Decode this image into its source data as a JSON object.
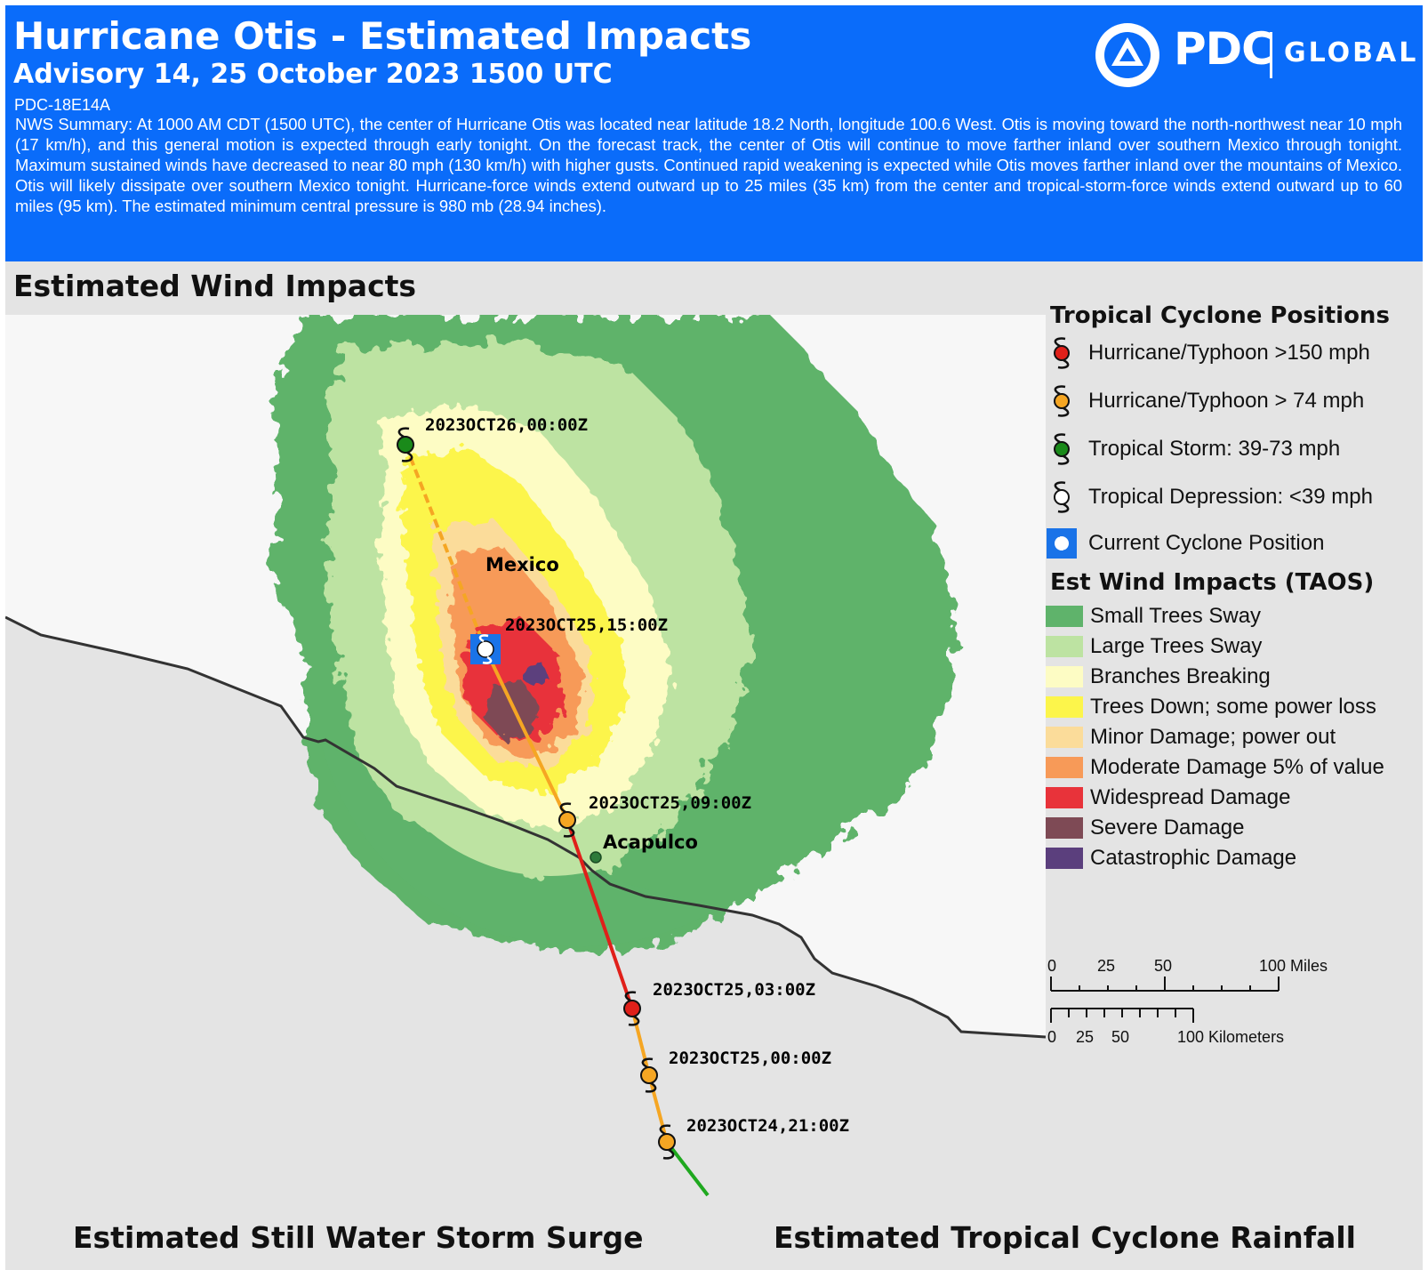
{
  "header": {
    "title": "Hurricane Otis - Estimated Impacts",
    "advisory": "Advisory  14, 25 October 2023 1500 UTC",
    "advisory_id": "PDC-18E14A",
    "summary": "NWS Summary: At 1000 AM CDT (1500 UTC), the center of Hurricane Otis was located near latitude 18.2 North, longitude 100.6 West.  Otis is moving toward the north-northwest near 10 mph (17 km/h), and this general  motion is expected through early tonight.  On the forecast track,   the center of Otis will continue to move farther inland over southern Mexico through tonight.   Maximum sustained winds have decreased to near 80 mph (130 km/h)  with higher gusts.  Continued rapid weakening is expected while Otis moves farther inland over the mountains of Mexico.  Otis will likely dissipate over southern Mexico tonight.   Hurricane-force winds extend outward up to 25 miles (35 km) from the center and tropical-storm-force winds extend outward up to 60 miles (95 km).   The estimated minimum central pressure is 980 mb (28.94 inches).",
    "logo": {
      "brand": "PDC",
      "suffix": "GLOBAL"
    }
  },
  "map": {
    "section_title": "Estimated Wind Impacts",
    "place_labels": {
      "country": "Mexico",
      "city": "Acapulco"
    },
    "track_points": [
      {
        "time": "2023OCT26,00:00Z",
        "category": "tropical-storm",
        "color": "#1a8a1a"
      },
      {
        "time": "2023OCT25,15:00Z",
        "category": "current",
        "color": "#1a73e8"
      },
      {
        "time": "2023OCT25,09:00Z",
        "category": "hurricane",
        "color": "#f5a623"
      },
      {
        "time": "2023OCT25,03:00Z",
        "category": "major-hurricane",
        "color": "#e0201a"
      },
      {
        "time": "2023OCT25,00:00Z",
        "category": "hurricane",
        "color": "#f5a623"
      },
      {
        "time": "2023OCT24,21:00Z",
        "category": "hurricane",
        "color": "#f5a623"
      }
    ]
  },
  "legend": {
    "positions_title": "Tropical Cyclone Positions",
    "positions": [
      {
        "label": "Hurricane/Typhoon >150 mph",
        "color": "#e0201a",
        "icon": "cyclone-icon"
      },
      {
        "label": "Hurricane/Typhoon > 74 mph",
        "color": "#f5a623",
        "icon": "cyclone-icon"
      },
      {
        "label": "Tropical Storm: 39-73 mph",
        "color": "#1a8a1a",
        "icon": "cyclone-icon"
      },
      {
        "label": "Tropical Depression: <39 mph",
        "color": "#ffffff",
        "icon": "cyclone-icon"
      },
      {
        "label": "Current Cyclone Position",
        "color": "#1a73e8",
        "icon": "current-position-icon"
      }
    ],
    "wind_title": "Est Wind Impacts (TAOS)",
    "wind": [
      {
        "label": "Small Trees Sway",
        "color": "#5fb36b"
      },
      {
        "label": "Large Trees Sway",
        "color": "#bde3a2"
      },
      {
        "label": "Branches Breaking",
        "color": "#fdfcc4"
      },
      {
        "label": "Trees Down; some power loss",
        "color": "#fcf54b"
      },
      {
        "label": "Minor Damage; power out",
        "color": "#fbdc9a"
      },
      {
        "label": "Moderate Damage 5% of value",
        "color": "#f79a58"
      },
      {
        "label": "Widespread Damage",
        "color": "#e8333a"
      },
      {
        "label": "Severe Damage",
        "color": "#7e4a55"
      },
      {
        "label": "Catastrophic Damage",
        "color": "#5b3f7d"
      }
    ]
  },
  "scale": {
    "miles_labels": [
      "0",
      "25",
      "50",
      "100 Miles"
    ],
    "km_labels": [
      "0",
      "25",
      "50",
      "100 Kilometers"
    ]
  },
  "bottom": {
    "storm_surge_title": "Estimated Still Water Storm Surge",
    "rainfall_title": "Estimated Tropical Cyclone Rainfall"
  }
}
